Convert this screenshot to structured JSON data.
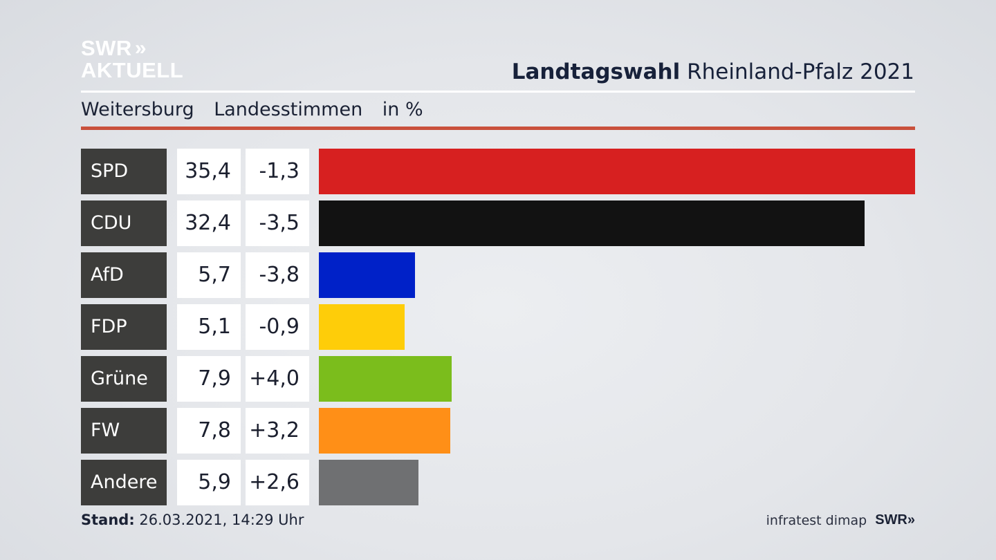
{
  "logo": {
    "line1": "SWR",
    "chevrons": "»",
    "line2": "AKTUELL"
  },
  "header": {
    "title_bold": "Landtagswahl",
    "title_rest": " Rheinland-Pfalz 2021"
  },
  "subtitle": {
    "district": "Weitersburg",
    "metric": "Landesstimmen",
    "unit": "in %"
  },
  "chart_data": {
    "type": "bar",
    "orientation": "horizontal",
    "title": "Landtagswahl Rheinland-Pfalz 2021",
    "subtitle": "Weitersburg Landesstimmen in %",
    "categories": [
      "SPD",
      "CDU",
      "AfD",
      "FDP",
      "Grüne",
      "FW",
      "Andere"
    ],
    "values": [
      35.4,
      32.4,
      5.7,
      5.1,
      7.9,
      7.8,
      5.9
    ],
    "value_labels": [
      "35,4",
      "32,4",
      "5,7",
      "5,1",
      "7,9",
      "7,8",
      "5,9"
    ],
    "changes": [
      -1.3,
      -3.5,
      -3.8,
      -0.9,
      4.0,
      3.2,
      2.6
    ],
    "change_labels": [
      "-1,3",
      "-3,5",
      "-3,8",
      "-0,9",
      "+4,0",
      "+3,2",
      "+2,6"
    ],
    "colors": [
      "#d72020",
      "#121212",
      "#0021c8",
      "#fecd09",
      "#7bbd1c",
      "#ff8f17",
      "#6f7072"
    ],
    "xlim": [
      0,
      35.4
    ]
  },
  "footer": {
    "stand_label": "Stand:",
    "stand_value": " 26.03.2021, 14:29 Uhr",
    "source": "infratest dimap",
    "brand": "SWR»"
  }
}
